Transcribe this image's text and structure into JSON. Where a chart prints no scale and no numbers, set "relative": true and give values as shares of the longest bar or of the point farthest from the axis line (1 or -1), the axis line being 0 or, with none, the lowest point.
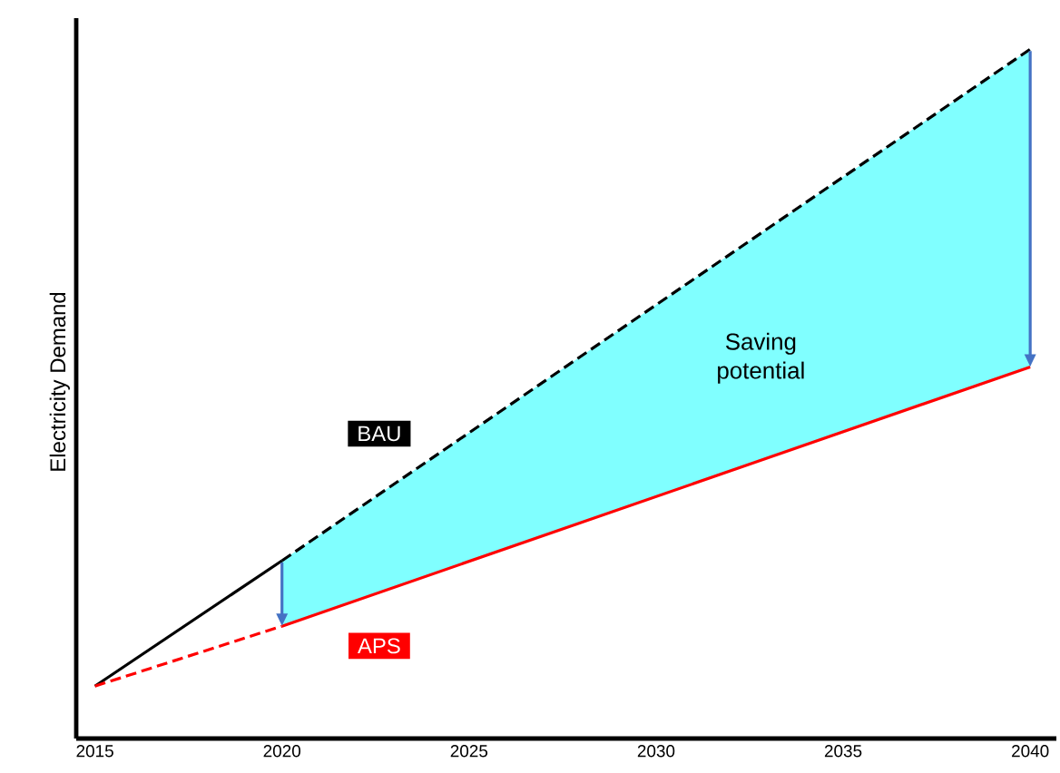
{
  "chart_data": {
    "type": "line",
    "relative": true,
    "ylabel": "Electricity Demand",
    "xlim": [
      2014.5,
      2040.7
    ],
    "xticks": [
      2015,
      2020,
      2025,
      2030,
      2035,
      2040
    ],
    "legend": false,
    "grid": false,
    "annotations": [
      "Saving potential"
    ],
    "series": [
      {
        "color": "#000000",
        "line_style": "solid",
        "x": [
          2015,
          2020
        ],
        "values": [
          0.076,
          0.258
        ]
      },
      {
        "color": "#ff0000",
        "line_style": "dashed",
        "x": [
          2015,
          2020
        ],
        "values": [
          0.076,
          0.163
        ]
      },
      {
        "name": "BAU",
        "color": "#000000",
        "line_style": "dashed",
        "x": [
          2020,
          2040
        ],
        "values": [
          0.258,
          1
        ]
      },
      {
        "name": "APS",
        "color": "#ff0000",
        "line_style": "solid",
        "x": [
          2020,
          2040
        ],
        "values": [
          0.163,
          0.539
        ],
        "lower": [
          0.163,
          0.539
        ],
        "upper": [
          0.258,
          1
        ]
      }
    ]
  }
}
